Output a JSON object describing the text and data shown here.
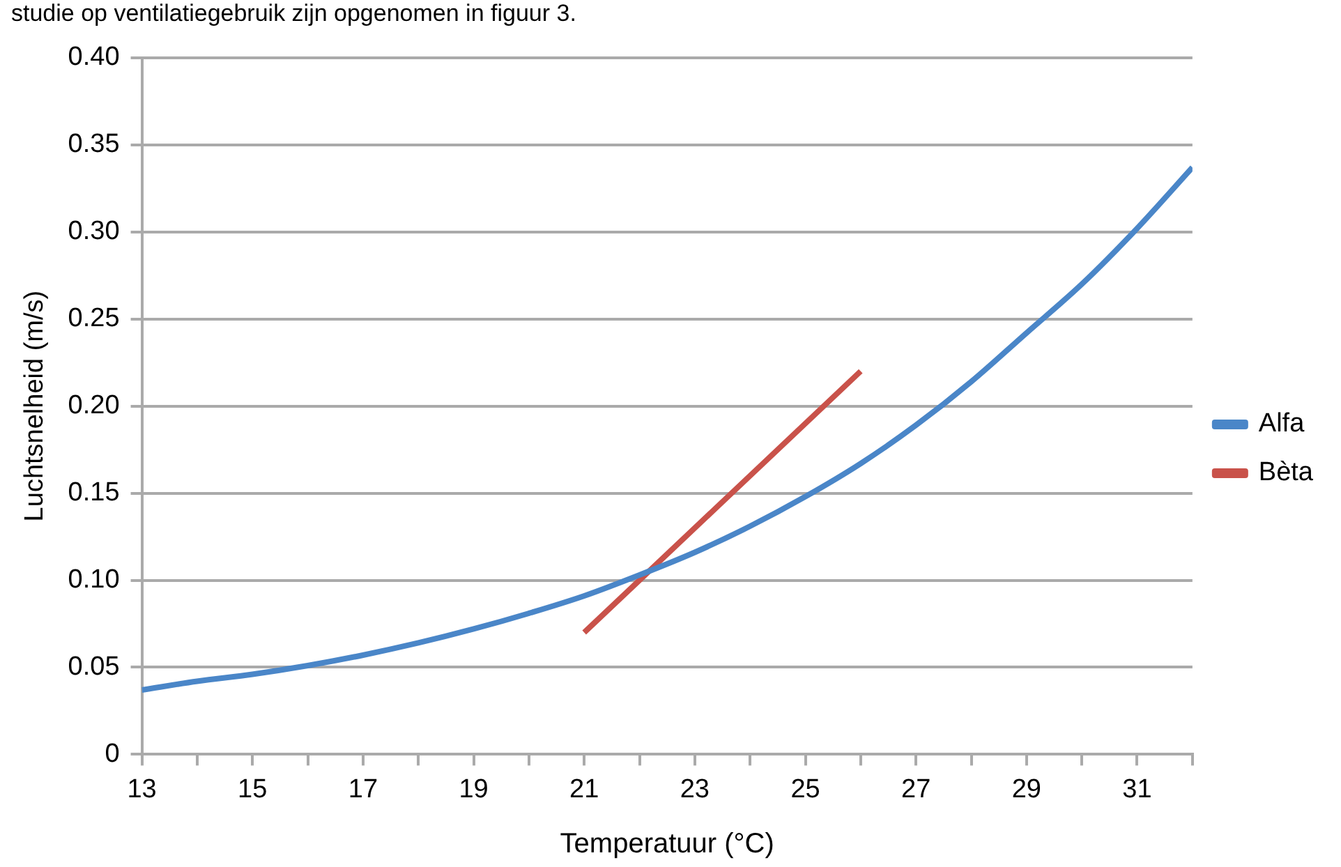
{
  "chart_data": {
    "type": "line",
    "xlabel": "Temperatuur (°C)",
    "ylabel": "Luchtsnelheid (m/s)",
    "annotations": [
      "studie op ventilatiegebruik zijn opgenomen in figuur 3."
    ],
    "series": [
      {
        "name": "Alfa",
        "color": "#4a86c8",
        "x": [
          13,
          14,
          15,
          16,
          17,
          18,
          19,
          20,
          21,
          22,
          23,
          24,
          25,
          26,
          27,
          28,
          29,
          30,
          31,
          32
        ],
        "values": [
          0.037,
          0.042,
          0.046,
          0.051,
          0.057,
          0.064,
          0.072,
          0.081,
          0.091,
          0.103,
          0.116,
          0.131,
          0.148,
          0.167,
          0.189,
          0.214,
          0.242,
          0.27,
          0.302,
          0.337
        ]
      },
      {
        "name": "Bèta",
        "color": "#c9524a",
        "x": [
          21,
          26
        ],
        "values": [
          0.07,
          0.22
        ]
      }
    ],
    "xlim": [
      13,
      32
    ],
    "xticks": [
      13,
      {
        "value": 14,
        "label": null
      },
      15,
      {
        "value": 16,
        "label": null
      },
      17,
      {
        "value": 18,
        "label": null
      },
      19,
      {
        "value": 20,
        "label": null
      },
      21,
      {
        "value": 22,
        "label": null
      },
      23,
      {
        "value": 24,
        "label": null
      },
      25,
      {
        "value": 26,
        "label": null
      },
      27,
      {
        "value": 28,
        "label": null
      },
      29,
      {
        "value": 30,
        "label": null
      },
      31,
      {
        "value": 32,
        "label": null
      }
    ],
    "ylim": [
      0,
      0.4
    ],
    "yticks": [
      0,
      0.05,
      {
        "value": 0.1,
        "label": "0.10"
      },
      0.15,
      {
        "value": 0.2,
        "label": "0.20"
      },
      0.25,
      {
        "value": 0.3,
        "label": "0.30"
      },
      0.35,
      {
        "value": 0.4,
        "label": "0.40"
      }
    ],
    "grid": "y",
    "legend": "right",
    "marker": "none",
    "line_style": "solid"
  }
}
